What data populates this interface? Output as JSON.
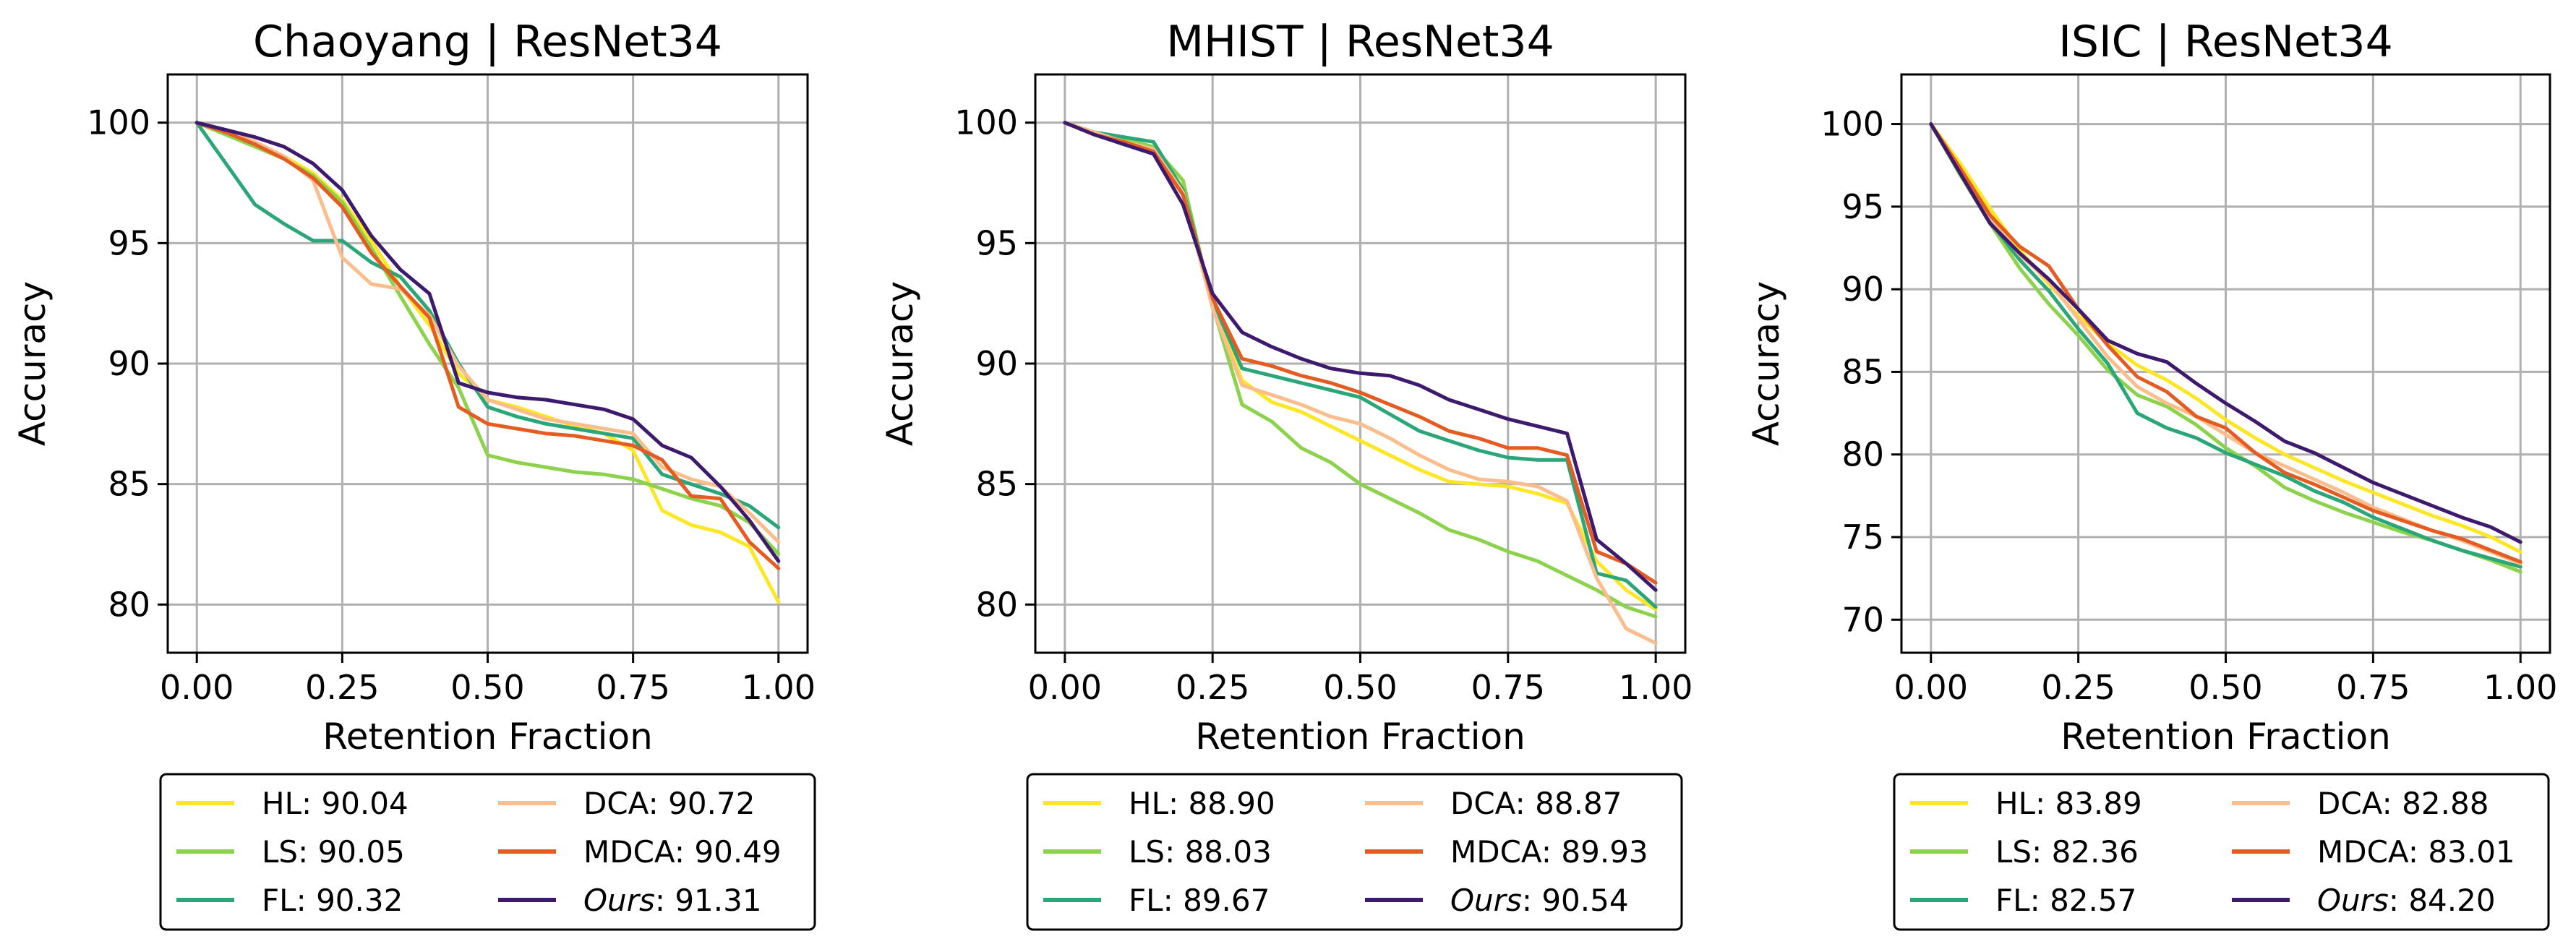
{
  "colors": {
    "HL": "#fde725",
    "LS": "#8cd24c",
    "FL": "#2aa678",
    "DCA": "#fbbd8c",
    "MDCA": "#e55c23",
    "Ours": "#3d1a6e"
  },
  "chart_data": [
    {
      "type": "line",
      "title": "Chaoyang | ResNet34",
      "xlabel": "Retention Fraction",
      "ylabel": "Accuracy",
      "xlim": [
        -0.05,
        1.05
      ],
      "ylim": [
        78,
        102
      ],
      "xticks": [
        "0.00",
        "0.25",
        "0.50",
        "0.75",
        "1.00"
      ],
      "yticks": [
        "80",
        "85",
        "90",
        "95",
        "100"
      ],
      "grid": true,
      "legend_position": "below",
      "legend": [
        {
          "key": "HL",
          "label": "HL",
          "score": ": 90.04",
          "italic": false
        },
        {
          "key": "LS",
          "label": "LS",
          "score": ": 90.05",
          "italic": false
        },
        {
          "key": "FL",
          "label": "FL",
          "score": ": 90.32",
          "italic": false
        },
        {
          "key": "DCA",
          "label": "DCA",
          "score": ": 90.72",
          "italic": false
        },
        {
          "key": "MDCA",
          "label": "MDCA",
          "score": ": 90.49",
          "italic": false
        },
        {
          "key": "Ours",
          "label": "Ours",
          "score": ": 91.31",
          "italic": true
        }
      ],
      "x": [
        0.0,
        0.05,
        0.1,
        0.15,
        0.2,
        0.25,
        0.3,
        0.35,
        0.4,
        0.45,
        0.5,
        0.55,
        0.6,
        0.65,
        0.7,
        0.75,
        0.8,
        0.85,
        0.9,
        0.95,
        1.0
      ],
      "series": [
        {
          "key": "HL",
          "values": [
            100,
            99.6,
            99.1,
            98.6,
            97.9,
            96.8,
            95.1,
            93.2,
            91.6,
            89.6,
            88.5,
            88.2,
            87.8,
            87.4,
            87.1,
            86.4,
            83.9,
            83.3,
            83.0,
            82.4,
            80.1
          ]
        },
        {
          "key": "LS",
          "values": [
            100,
            99.5,
            99.0,
            98.5,
            97.8,
            96.7,
            94.8,
            92.8,
            90.8,
            89.0,
            86.2,
            85.9,
            85.7,
            85.5,
            85.4,
            85.2,
            84.8,
            84.4,
            84.1,
            83.4,
            82.1
          ]
        },
        {
          "key": "FL",
          "values": [
            100,
            98.3,
            96.6,
            95.8,
            95.1,
            95.1,
            94.2,
            93.6,
            92.2,
            90.0,
            88.2,
            87.8,
            87.5,
            87.3,
            87.1,
            86.9,
            85.4,
            85.0,
            84.6,
            84.1,
            83.2
          ]
        },
        {
          "key": "DCA",
          "values": [
            100,
            99.7,
            99.2,
            98.6,
            97.6,
            94.4,
            93.3,
            93.1,
            92.0,
            89.9,
            88.5,
            88.1,
            87.7,
            87.5,
            87.3,
            87.1,
            85.7,
            85.2,
            84.9,
            83.8,
            82.6
          ]
        },
        {
          "key": "MDCA",
          "values": [
            100,
            99.6,
            99.1,
            98.5,
            97.7,
            96.5,
            94.6,
            93.2,
            91.9,
            88.2,
            87.5,
            87.3,
            87.1,
            87.0,
            86.8,
            86.6,
            86.0,
            84.5,
            84.4,
            82.6,
            81.5
          ]
        },
        {
          "key": "Ours",
          "values": [
            100,
            99.7,
            99.4,
            99.0,
            98.3,
            97.2,
            95.3,
            93.9,
            92.9,
            89.2,
            88.8,
            88.6,
            88.5,
            88.3,
            88.1,
            87.7,
            86.6,
            86.1,
            84.9,
            83.5,
            81.8
          ]
        }
      ]
    },
    {
      "type": "line",
      "title": "MHIST | ResNet34",
      "xlabel": "Retention Fraction",
      "ylabel": "Accuracy",
      "xlim": [
        -0.05,
        1.05
      ],
      "ylim": [
        78,
        102
      ],
      "xticks": [
        "0.00",
        "0.25",
        "0.50",
        "0.75",
        "1.00"
      ],
      "yticks": [
        "80",
        "85",
        "90",
        "95",
        "100"
      ],
      "grid": true,
      "legend_position": "below",
      "legend": [
        {
          "key": "HL",
          "label": "HL",
          "score": ": 88.90",
          "italic": false
        },
        {
          "key": "LS",
          "label": "LS",
          "score": ": 88.03",
          "italic": false
        },
        {
          "key": "FL",
          "label": "FL",
          "score": ": 89.67",
          "italic": false
        },
        {
          "key": "DCA",
          "label": "DCA",
          "score": ": 88.87",
          "italic": false
        },
        {
          "key": "MDCA",
          "label": "MDCA",
          "score": ": 89.93",
          "italic": false
        },
        {
          "key": "Ours",
          "label": "Ours",
          "score": ": 90.54",
          "italic": true
        }
      ],
      "x": [
        0.0,
        0.05,
        0.1,
        0.15,
        0.2,
        0.25,
        0.3,
        0.35,
        0.4,
        0.45,
        0.5,
        0.55,
        0.6,
        0.65,
        0.7,
        0.75,
        0.8,
        0.85,
        0.9,
        0.95,
        1.0
      ],
      "series": [
        {
          "key": "HL",
          "values": [
            100,
            99.6,
            99.3,
            98.9,
            97.3,
            92.5,
            89.3,
            88.4,
            88.0,
            87.4,
            86.8,
            86.2,
            85.6,
            85.1,
            85.0,
            84.9,
            84.6,
            84.2,
            81.8,
            80.6,
            79.8
          ]
        },
        {
          "key": "LS",
          "values": [
            100,
            99.6,
            99.3,
            99.0,
            97.6,
            92.4,
            88.3,
            87.6,
            86.5,
            85.9,
            85.0,
            84.4,
            83.8,
            83.1,
            82.7,
            82.2,
            81.8,
            81.2,
            80.6,
            79.9,
            79.5
          ]
        },
        {
          "key": "FL",
          "values": [
            100,
            99.6,
            99.4,
            99.2,
            97.2,
            92.6,
            89.8,
            89.5,
            89.2,
            88.9,
            88.6,
            87.9,
            87.2,
            86.8,
            86.4,
            86.1,
            86.0,
            86.0,
            81.3,
            81.0,
            79.9
          ]
        },
        {
          "key": "DCA",
          "values": [
            100,
            99.6,
            99.2,
            98.9,
            97.1,
            92.3,
            89.1,
            88.7,
            88.3,
            87.8,
            87.5,
            86.9,
            86.2,
            85.6,
            85.2,
            85.1,
            84.9,
            84.3,
            81.1,
            79.0,
            78.4
          ]
        },
        {
          "key": "MDCA",
          "values": [
            100,
            99.5,
            99.2,
            98.8,
            97.0,
            92.7,
            90.2,
            89.9,
            89.5,
            89.2,
            88.8,
            88.3,
            87.8,
            87.2,
            86.9,
            86.5,
            86.5,
            86.2,
            82.2,
            81.7,
            80.9
          ]
        },
        {
          "key": "Ours",
          "values": [
            100,
            99.5,
            99.1,
            98.7,
            96.6,
            92.9,
            91.3,
            90.7,
            90.2,
            89.8,
            89.6,
            89.5,
            89.1,
            88.5,
            88.1,
            87.7,
            87.4,
            87.1,
            82.7,
            81.7,
            80.6
          ]
        }
      ]
    },
    {
      "type": "line",
      "title": "ISIC | ResNet34",
      "xlabel": "Retention Fraction",
      "ylabel": "Accuracy",
      "xlim": [
        -0.05,
        1.05
      ],
      "ylim": [
        68,
        103
      ],
      "xticks": [
        "0.00",
        "0.25",
        "0.50",
        "0.75",
        "1.00"
      ],
      "yticks": [
        "70",
        "75",
        "80",
        "85",
        "90",
        "95",
        "100"
      ],
      "grid": true,
      "legend_position": "below",
      "legend": [
        {
          "key": "HL",
          "label": "HL",
          "score": ": 83.89",
          "italic": false
        },
        {
          "key": "LS",
          "label": "LS",
          "score": ": 82.36",
          "italic": false
        },
        {
          "key": "FL",
          "label": "FL",
          "score": ": 82.57",
          "italic": false
        },
        {
          "key": "DCA",
          "label": "DCA",
          "score": ": 82.88",
          "italic": false
        },
        {
          "key": "MDCA",
          "label": "MDCA",
          "score": ": 83.01",
          "italic": false
        },
        {
          "key": "Ours",
          "label": "Ours",
          "score": ": 84.20",
          "italic": true
        }
      ],
      "x": [
        0.0,
        0.05,
        0.1,
        0.15,
        0.2,
        0.25,
        0.3,
        0.35,
        0.4,
        0.45,
        0.5,
        0.55,
        0.6,
        0.65,
        0.7,
        0.75,
        0.8,
        0.85,
        0.9,
        0.95,
        1.0
      ],
      "series": [
        {
          "key": "HL",
          "values": [
            100,
            97.6,
            94.9,
            92.4,
            90.3,
            88.4,
            86.7,
            85.4,
            84.5,
            83.4,
            82.1,
            81.0,
            80.0,
            79.2,
            78.4,
            77.7,
            77.0,
            76.3,
            75.7,
            75.0,
            74.1
          ]
        },
        {
          "key": "LS",
          "values": [
            100,
            96.9,
            94.0,
            91.3,
            89.1,
            87.2,
            85.1,
            83.6,
            82.9,
            81.8,
            80.4,
            79.3,
            78.0,
            77.2,
            76.5,
            75.9,
            75.3,
            74.8,
            74.2,
            73.6,
            72.9
          ]
        },
        {
          "key": "FL",
          "values": [
            100,
            97.0,
            94.1,
            91.8,
            89.9,
            87.6,
            85.5,
            82.5,
            81.6,
            81.0,
            80.1,
            79.4,
            78.7,
            77.8,
            77.1,
            76.2,
            75.5,
            74.8,
            74.2,
            73.7,
            73.2
          ]
        },
        {
          "key": "DCA",
          "values": [
            100,
            97.2,
            94.4,
            92.1,
            90.5,
            88.2,
            85.9,
            84.1,
            83.1,
            82.3,
            81.2,
            80.1,
            79.3,
            78.5,
            77.7,
            76.8,
            76.1,
            75.4,
            74.8,
            74.1,
            73.4
          ]
        },
        {
          "key": "MDCA",
          "values": [
            100,
            97.3,
            94.5,
            92.6,
            91.4,
            88.8,
            86.6,
            84.7,
            83.8,
            82.3,
            81.6,
            80.1,
            78.9,
            78.2,
            77.4,
            76.6,
            76.0,
            75.4,
            74.9,
            74.2,
            73.5
          ]
        },
        {
          "key": "Ours",
          "values": [
            100,
            97.0,
            94.0,
            92.2,
            90.6,
            88.8,
            86.9,
            86.1,
            85.6,
            84.3,
            83.1,
            82.0,
            80.8,
            80.1,
            79.2,
            78.3,
            77.6,
            76.9,
            76.2,
            75.6,
            74.7
          ]
        }
      ]
    }
  ]
}
